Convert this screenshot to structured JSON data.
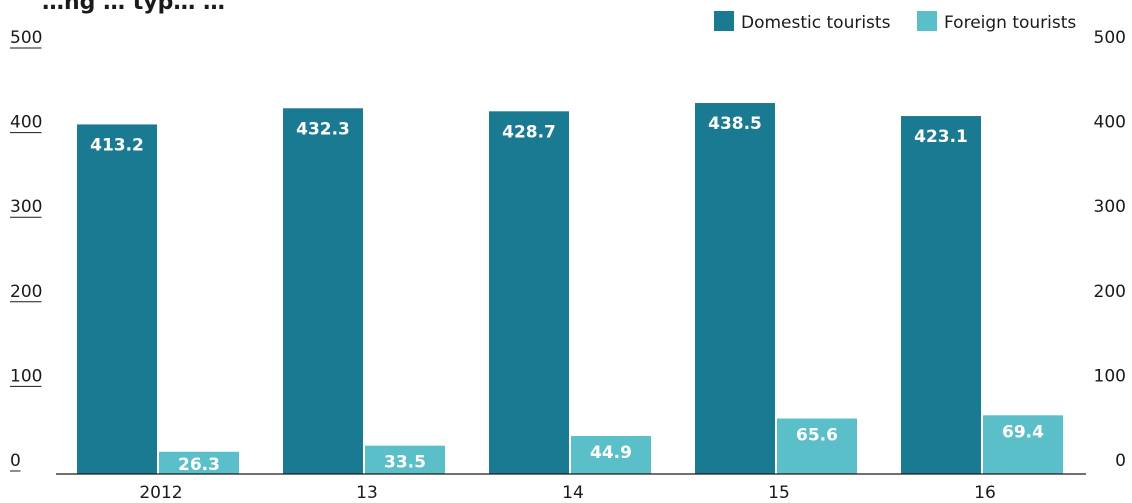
{
  "chart_data": {
    "type": "bar",
    "title": "…ng … typ… …",
    "categories": [
      "2012",
      "13",
      "14",
      "15",
      "16"
    ],
    "series": [
      {
        "name": "Domestic tourists",
        "color": "#1a7a91",
        "values": [
          413.2,
          432.3,
          428.7,
          438.5,
          423.1
        ]
      },
      {
        "name": "Foreign tourists",
        "color": "#5bbfc9",
        "values": [
          26.3,
          33.5,
          44.9,
          65.6,
          69.4
        ]
      }
    ],
    "ylim": [
      0,
      500
    ],
    "yticks": [
      0,
      100,
      200,
      300,
      400,
      500
    ],
    "xlabel": "",
    "ylabel": "",
    "legend": "top-right",
    "grid": false
  }
}
